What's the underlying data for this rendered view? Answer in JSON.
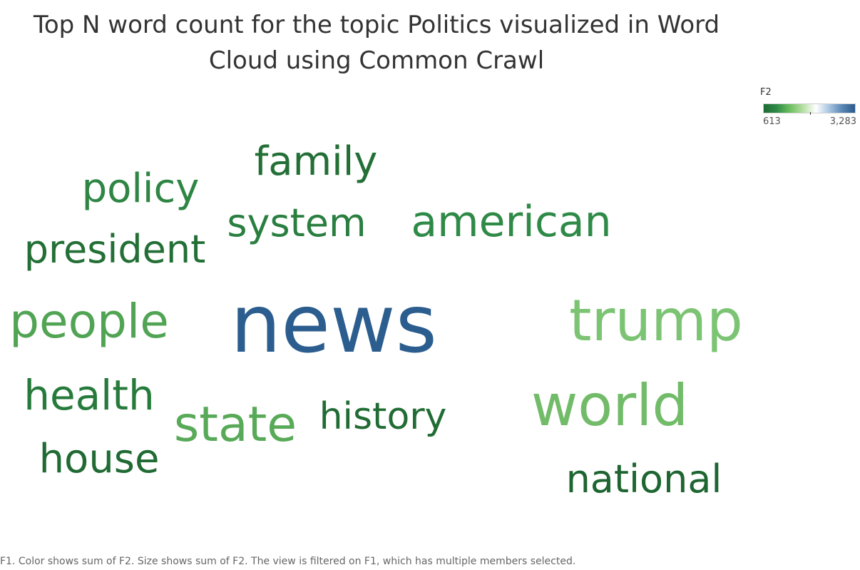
{
  "chart_data": {
    "type": "wordcloud",
    "title": "Top N word count for the topic Politics visualized in Word Cloud using Common Crawl",
    "legend": {
      "title": "F2",
      "min_label": "613",
      "max_label": "3,283",
      "min": 613,
      "max": 3283,
      "placement": "top-right",
      "colors": [
        "#1e6b33",
        "#2e8b47",
        "#6cbf5f",
        "#b6dea3",
        "#ffffff",
        "#a9c6e2",
        "#5b87b4",
        "#2a5a8c"
      ]
    },
    "words": [
      {
        "word": "news",
        "value": 3283,
        "color": "#2b5d8e"
      },
      {
        "word": "trump",
        "value": 1950,
        "color": "#7cc474"
      },
      {
        "word": "world",
        "value": 1800,
        "color": "#71bb69"
      },
      {
        "word": "people",
        "value": 1450,
        "color": "#52a455"
      },
      {
        "word": "state",
        "value": 1400,
        "color": "#58aa58"
      },
      {
        "word": "american",
        "value": 1150,
        "color": "#2f8a48"
      },
      {
        "word": "policy",
        "value": 1000,
        "color": "#2e8544"
      },
      {
        "word": "system",
        "value": 930,
        "color": "#2a7f40"
      },
      {
        "word": "health",
        "value": 860,
        "color": "#267a3b"
      },
      {
        "word": "president",
        "value": 800,
        "color": "#236f36"
      },
      {
        "word": "family",
        "value": 760,
        "color": "#236f36"
      },
      {
        "word": "history",
        "value": 720,
        "color": "#216c34"
      },
      {
        "word": "house",
        "value": 690,
        "color": "#206a33"
      },
      {
        "word": "national",
        "value": 613,
        "color": "#1e6531"
      }
    ]
  },
  "caption": "F1.  Color shows sum of F2.  Size shows sum of F2. The view is filtered on F1, which has multiple members selected."
}
